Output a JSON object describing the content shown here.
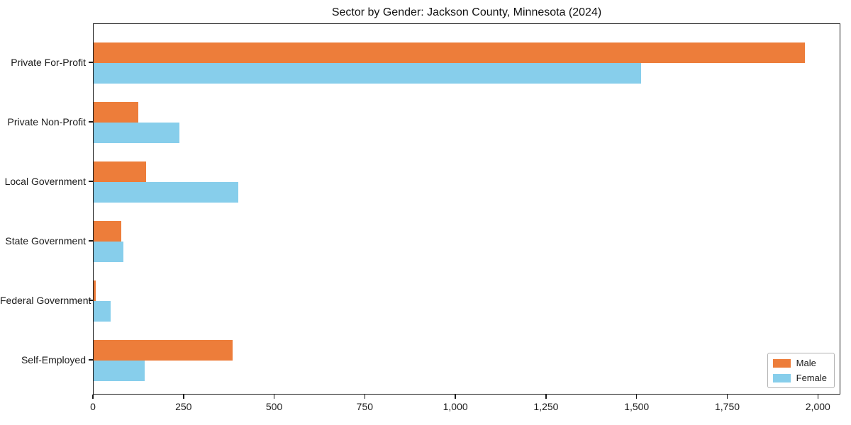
{
  "chart_data": {
    "type": "bar",
    "orientation": "horizontal",
    "title": "Sector by Gender: Jackson County, Minnesota (2024)",
    "categories": [
      "Private For-Profit",
      "Private Non-Profit",
      "Local Government",
      "State Government",
      "Federal Government",
      "Self-Employed"
    ],
    "series": [
      {
        "name": "Male",
        "color": "#ed7d3a",
        "values": [
          1963,
          124,
          145,
          77,
          5,
          384
        ]
      },
      {
        "name": "Female",
        "color": "#87ceeb",
        "values": [
          1510,
          236,
          400,
          83,
          47,
          140
        ]
      }
    ],
    "xlabel": "",
    "ylabel": "",
    "xlim": [
      0,
      2062
    ],
    "xticks": [
      0,
      250,
      500,
      750,
      1000,
      1250,
      1500,
      1750,
      2000
    ],
    "grid": false,
    "legend_position": "lower right"
  },
  "colors": {
    "axis": "#1a1a1a",
    "background": "#ffffff",
    "legend_border": "#b3b3b3"
  }
}
